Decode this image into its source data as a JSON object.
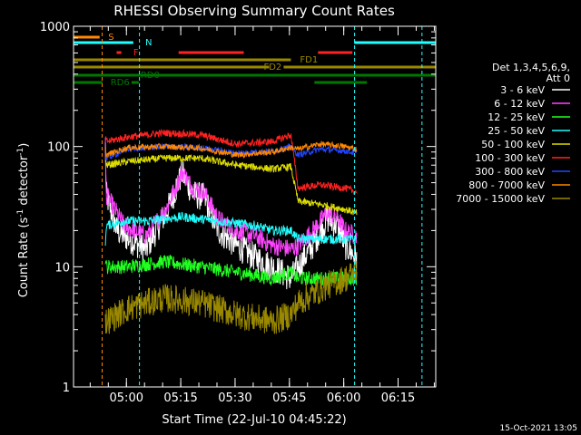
{
  "chart_data": {
    "type": "line",
    "title": "RHESSI Observing Summary Count Rates",
    "xlabel": "Start Time (22-Jul-10 04:45:22)",
    "ylabel_main": "Count Rate (s",
    "ylabel_sup1": "-1",
    "ylabel_mid": " detector",
    "ylabel_sup2": "-1",
    "ylabel_end": ")",
    "y_scale": "log",
    "ylim": [
      1,
      1000
    ],
    "xlim_minutes": [
      0,
      100
    ],
    "y_ticks": [
      {
        "value": 1,
        "label": "1"
      },
      {
        "value": 10,
        "label": "10"
      },
      {
        "value": 100,
        "label": "100"
      },
      {
        "value": 1000,
        "label": "1000"
      }
    ],
    "x_ticks": [
      {
        "minute": 14.6,
        "label": "05:00"
      },
      {
        "minute": 29.6,
        "label": "05:15"
      },
      {
        "minute": 44.6,
        "label": "05:30"
      },
      {
        "minute": 59.6,
        "label": "05:45"
      },
      {
        "minute": 74.6,
        "label": "06:00"
      },
      {
        "minute": 89.6,
        "label": "06:15"
      }
    ],
    "legend_header": [
      "Det 1,3,4,5,6,9,",
      "Att 0"
    ],
    "series": [
      {
        "name": "3 - 6 keV",
        "color": "#ffffff",
        "base": [
          [
            8.8,
            100
          ],
          [
            9,
            40
          ],
          [
            12,
            20
          ],
          [
            14,
            18
          ],
          [
            20,
            14
          ],
          [
            26,
            30
          ],
          [
            30,
            60
          ],
          [
            33,
            40
          ],
          [
            36,
            38
          ],
          [
            40,
            20
          ],
          [
            45,
            15
          ],
          [
            50,
            12
          ],
          [
            55,
            10
          ],
          [
            60,
            8
          ],
          [
            62,
            10
          ],
          [
            66,
            15
          ],
          [
            70,
            25
          ],
          [
            73,
            22
          ],
          [
            75,
            15
          ],
          [
            78,
            12
          ]
        ],
        "noise": 0.12
      },
      {
        "name": "6 - 12 keV",
        "color": "#ff44ff",
        "base": [
          [
            8.8,
            105
          ],
          [
            9,
            40
          ],
          [
            12,
            28
          ],
          [
            14,
            22
          ],
          [
            20,
            18
          ],
          [
            26,
            32
          ],
          [
            30,
            62
          ],
          [
            33,
            45
          ],
          [
            36,
            42
          ],
          [
            40,
            25
          ],
          [
            45,
            20
          ],
          [
            50,
            18
          ],
          [
            55,
            15
          ],
          [
            60,
            14
          ],
          [
            62,
            15
          ],
          [
            66,
            20
          ],
          [
            70,
            28
          ],
          [
            73,
            25
          ],
          [
            75,
            20
          ],
          [
            78,
            18
          ]
        ],
        "noise": 0.08
      },
      {
        "name": "12 - 25 keV",
        "color": "#22ff22",
        "base": [
          [
            8.8,
            12
          ],
          [
            9,
            10
          ],
          [
            15,
            10
          ],
          [
            25,
            11
          ],
          [
            35,
            10
          ],
          [
            45,
            9
          ],
          [
            55,
            8
          ],
          [
            60,
            9
          ],
          [
            62,
            8
          ],
          [
            70,
            8
          ],
          [
            75,
            8
          ],
          [
            78,
            8
          ]
        ],
        "noise": 0.06
      },
      {
        "name": "25 - 50 keV",
        "color": "#22ffff",
        "base": [
          [
            8.8,
            15
          ],
          [
            9,
            22
          ],
          [
            14,
            24
          ],
          [
            20,
            24
          ],
          [
            30,
            26
          ],
          [
            40,
            24
          ],
          [
            50,
            22
          ],
          [
            55,
            20
          ],
          [
            60,
            20
          ],
          [
            62,
            17
          ],
          [
            70,
            17
          ],
          [
            75,
            17
          ],
          [
            78,
            17
          ]
        ],
        "noise": 0.04
      },
      {
        "name": "50 - 100 keV",
        "color": "#dddd00",
        "base": [
          [
            8.8,
            80
          ],
          [
            9,
            70
          ],
          [
            15,
            75
          ],
          [
            25,
            80
          ],
          [
            35,
            80
          ],
          [
            45,
            70
          ],
          [
            55,
            65
          ],
          [
            60,
            68
          ],
          [
            62,
            35
          ],
          [
            68,
            33
          ],
          [
            75,
            30
          ],
          [
            78,
            28
          ]
        ],
        "noise": 0.03
      },
      {
        "name": "100 - 300 keV",
        "color": "#ff2222",
        "base": [
          [
            8.8,
            120
          ],
          [
            9,
            110
          ],
          [
            15,
            120
          ],
          [
            25,
            130
          ],
          [
            35,
            125
          ],
          [
            45,
            105
          ],
          [
            55,
            110
          ],
          [
            60,
            125
          ],
          [
            62,
            45
          ],
          [
            68,
            48
          ],
          [
            75,
            45
          ],
          [
            78,
            42
          ]
        ],
        "noise": 0.03
      },
      {
        "name": "300 - 800 keV",
        "color": "#2244ff",
        "base": [
          [
            8.8,
            90
          ],
          [
            9,
            80
          ],
          [
            15,
            95
          ],
          [
            25,
            100
          ],
          [
            35,
            98
          ],
          [
            45,
            88
          ],
          [
            55,
            92
          ],
          [
            60,
            100
          ],
          [
            62,
            85
          ],
          [
            68,
            95
          ],
          [
            75,
            92
          ],
          [
            78,
            88
          ]
        ],
        "noise": 0.025
      },
      {
        "name": "800 - 7000 keV",
        "color": "#ff8800",
        "base": [
          [
            8.8,
            95
          ],
          [
            9,
            85
          ],
          [
            15,
            98
          ],
          [
            25,
            100
          ],
          [
            35,
            97
          ],
          [
            45,
            85
          ],
          [
            55,
            90
          ],
          [
            60,
            98
          ],
          [
            62,
            95
          ],
          [
            68,
            105
          ],
          [
            75,
            100
          ],
          [
            78,
            95
          ]
        ],
        "noise": 0.025
      },
      {
        "name": "7000 - 15000 keV",
        "color": "#998800",
        "base": [
          [
            8.8,
            3.5
          ],
          [
            9,
            3.5
          ],
          [
            15,
            4.5
          ],
          [
            25,
            5.5
          ],
          [
            35,
            5
          ],
          [
            45,
            4
          ],
          [
            55,
            3.5
          ],
          [
            60,
            4
          ],
          [
            62,
            5
          ],
          [
            70,
            7
          ],
          [
            75,
            8
          ],
          [
            78,
            9
          ]
        ],
        "noise": 0.12
      }
    ],
    "flag_bars": [
      {
        "label": "S",
        "color": "#ff8800",
        "y": 41,
        "segments": [
          [
            0,
            7.2
          ]
        ],
        "label_minute": 9.6,
        "label_y": 44
      },
      {
        "label": "N",
        "color": "#22ffff",
        "y": 47,
        "segments": [
          [
            0,
            16.5
          ],
          [
            77.5,
            100
          ]
        ],
        "label_minute": 19.8,
        "label_y": 50
      },
      {
        "label": "F",
        "color": "#ff2222",
        "y": 58,
        "segments": [
          [
            11.9,
            13.2
          ],
          [
            29,
            47
          ],
          [
            67.5,
            77
          ]
        ],
        "label_minute": 16.5,
        "label_y": 61
      },
      {
        "label": "FD1",
        "color": "#998800",
        "y": 66,
        "segments": [
          [
            0,
            60
          ]
        ],
        "label_minute": 62.5,
        "label_y": 69
      },
      {
        "label": "FD2",
        "color": "#998800",
        "y": 74,
        "segments": [
          [
            0,
            54
          ],
          [
            58,
            100
          ]
        ],
        "label_minute": 52.5,
        "label_y": 77
      },
      {
        "label": "RD0",
        "color": "#007700",
        "y": 83,
        "segments": [
          [
            0,
            100
          ]
        ],
        "label_minute": 18.5,
        "label_y": 86
      },
      {
        "label": "RD6",
        "color": "#007700",
        "y": 91,
        "segments": [
          [
            0,
            8
          ],
          [
            16,
            18
          ],
          [
            66.5,
            81
          ]
        ],
        "label_minute": 10.2,
        "label_y": 94
      }
    ],
    "vlines": [
      {
        "color": "#ff8800",
        "minute": 7.9
      },
      {
        "color": "#22ffff",
        "minute": 18.2
      },
      {
        "color": "#22ffff",
        "minute": 77.6
      },
      {
        "color": "#22ffff",
        "minute": 96.2
      }
    ],
    "footer_timestamp": "15-Oct-2021 13:05"
  }
}
